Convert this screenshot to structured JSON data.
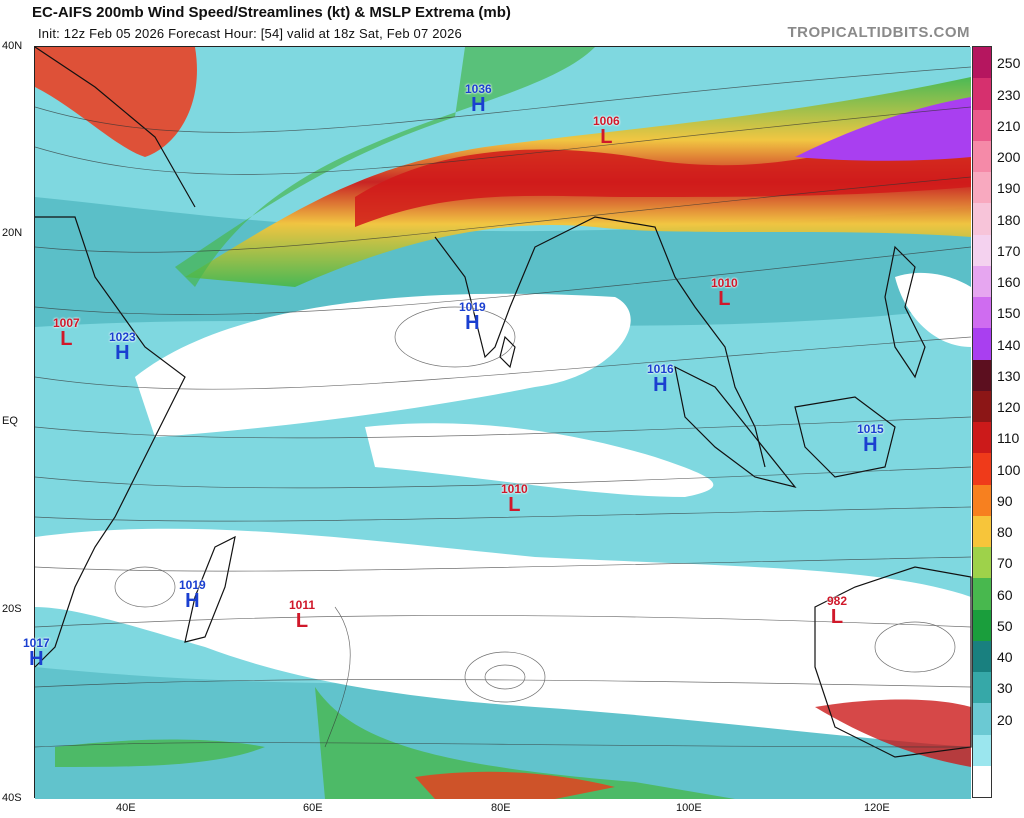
{
  "header": {
    "title": "EC-AIFS 200mb Wind Speed/Streamlines (kt) & MSLP Extrema (mb)",
    "subtitle": "Init: 12z Feb 05 2026   Forecast Hour: [54]   valid at 18z Sat, Feb 07 2026",
    "brand": "TROPICALTIDBITS.COM"
  },
  "axes": {
    "lat_labels": [
      "40N",
      "20N",
      "EQ",
      "20S",
      "40S"
    ],
    "lon_labels": [
      "40E",
      "60E",
      "80E",
      "100E",
      "120E"
    ]
  },
  "colorbar": {
    "ticks": [
      "250",
      "230",
      "210",
      "200",
      "190",
      "180",
      "170",
      "160",
      "150",
      "140",
      "130",
      "120",
      "110",
      "100",
      "90",
      "80",
      "70",
      "60",
      "50",
      "40",
      "30",
      "20"
    ],
    "colors": [
      "#b5165f",
      "#d6306e",
      "#ea5b8c",
      "#f58aa8",
      "#f8a9bf",
      "#f7c4d9",
      "#f4d2ef",
      "#e6a6f0",
      "#cf6cf0",
      "#a93ff0",
      "#5c0f1f",
      "#8c1616",
      "#cc1a1a",
      "#ef3a1a",
      "#f7801f",
      "#f7c53a",
      "#9ed24a",
      "#48b84e",
      "#1a9e3c",
      "#19807f",
      "#36a8a8",
      "#6bc9d3",
      "#9be6ee",
      "#ffffff"
    ]
  },
  "pressure_systems": [
    {
      "type": "H",
      "value": "1036"
    },
    {
      "type": "L",
      "value": "1006"
    },
    {
      "type": "L",
      "value": "1007"
    },
    {
      "type": "H",
      "value": "1023"
    },
    {
      "type": "H",
      "value": "1019"
    },
    {
      "type": "L",
      "value": "1010"
    },
    {
      "type": "H",
      "value": "1016"
    },
    {
      "type": "H",
      "value": "1015"
    },
    {
      "type": "L",
      "value": "1010"
    },
    {
      "type": "H",
      "value": "1019"
    },
    {
      "type": "L",
      "value": "1011"
    },
    {
      "type": "H",
      "value": "1017"
    },
    {
      "type": "L",
      "value": "982"
    }
  ]
}
